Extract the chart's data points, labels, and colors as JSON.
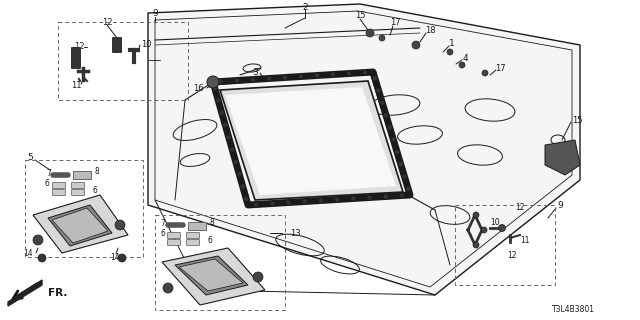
{
  "bg_color": "#ffffff",
  "lc": "#1a1a1a",
  "part_number": "T3L4B3801",
  "thin": 0.7,
  "med": 1.0,
  "thick": 1.8,
  "dash_style": [
    4,
    3
  ]
}
